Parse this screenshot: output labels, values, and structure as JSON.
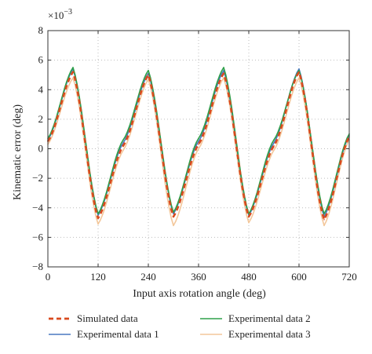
{
  "chart_data": {
    "type": "line",
    "xlabel": "Input axis rotation angle (deg)",
    "ylabel": "Kinematic error (deg)",
    "scale_label": "×10",
    "scale_exponent": "−3",
    "xlim": [
      0,
      720
    ],
    "ylim": [
      -8,
      8
    ],
    "xticks": [
      0,
      120,
      240,
      360,
      480,
      600,
      720
    ],
    "yticks": [
      -8,
      -6,
      -4,
      -2,
      0,
      2,
      4,
      6,
      8
    ],
    "xtick_labels": [
      "0",
      "120",
      "240",
      "360",
      "480",
      "600",
      "720"
    ],
    "ytick_labels": [
      "−8",
      "−6",
      "−4",
      "−2",
      "0",
      "2",
      "4",
      "6",
      "8"
    ],
    "grid": true,
    "legend_placement": "bottom",
    "series": [
      {
        "name": "Simulated data",
        "color": "#d94a1e",
        "style": "dashed",
        "x": [
          0,
          60,
          120,
          180,
          240,
          300,
          360,
          420,
          480,
          540,
          600,
          660,
          720
        ],
        "y": [
          0.5,
          5.2,
          -4.7,
          0.2,
          5.0,
          -4.6,
          0.3,
          5.1,
          -4.6,
          0.2,
          5.2,
          -4.8,
          0.8
        ]
      },
      {
        "name": "Experimental data 1",
        "color": "#4a78c0",
        "style": "solid",
        "x": [
          0,
          60,
          120,
          180,
          240,
          300,
          360,
          420,
          480,
          540,
          600,
          660,
          720
        ],
        "y": [
          0.6,
          5.4,
          -4.5,
          0.4,
          5.1,
          -4.4,
          0.5,
          5.3,
          -4.5,
          0.4,
          5.4,
          -4.6,
          0.9
        ]
      },
      {
        "name": "Experimental data 2",
        "color": "#2ea04a",
        "style": "solid",
        "x": [
          0,
          60,
          120,
          180,
          240,
          300,
          360,
          420,
          480,
          540,
          600,
          660,
          720
        ],
        "y": [
          0.7,
          5.5,
          -4.4,
          0.6,
          5.3,
          -4.3,
          0.7,
          5.5,
          -4.4,
          0.6,
          5.3,
          -4.4,
          1.0
        ]
      },
      {
        "name": "Experimental data 3",
        "color": "#f3c79a",
        "style": "solid",
        "x": [
          0,
          60,
          120,
          180,
          240,
          300,
          360,
          420,
          480,
          540,
          600,
          660,
          720
        ],
        "y": [
          0.3,
          4.8,
          -5.1,
          -0.1,
          4.7,
          -5.2,
          0.0,
          4.8,
          -5.0,
          -0.1,
          4.8,
          -5.2,
          0.6
        ]
      }
    ]
  }
}
